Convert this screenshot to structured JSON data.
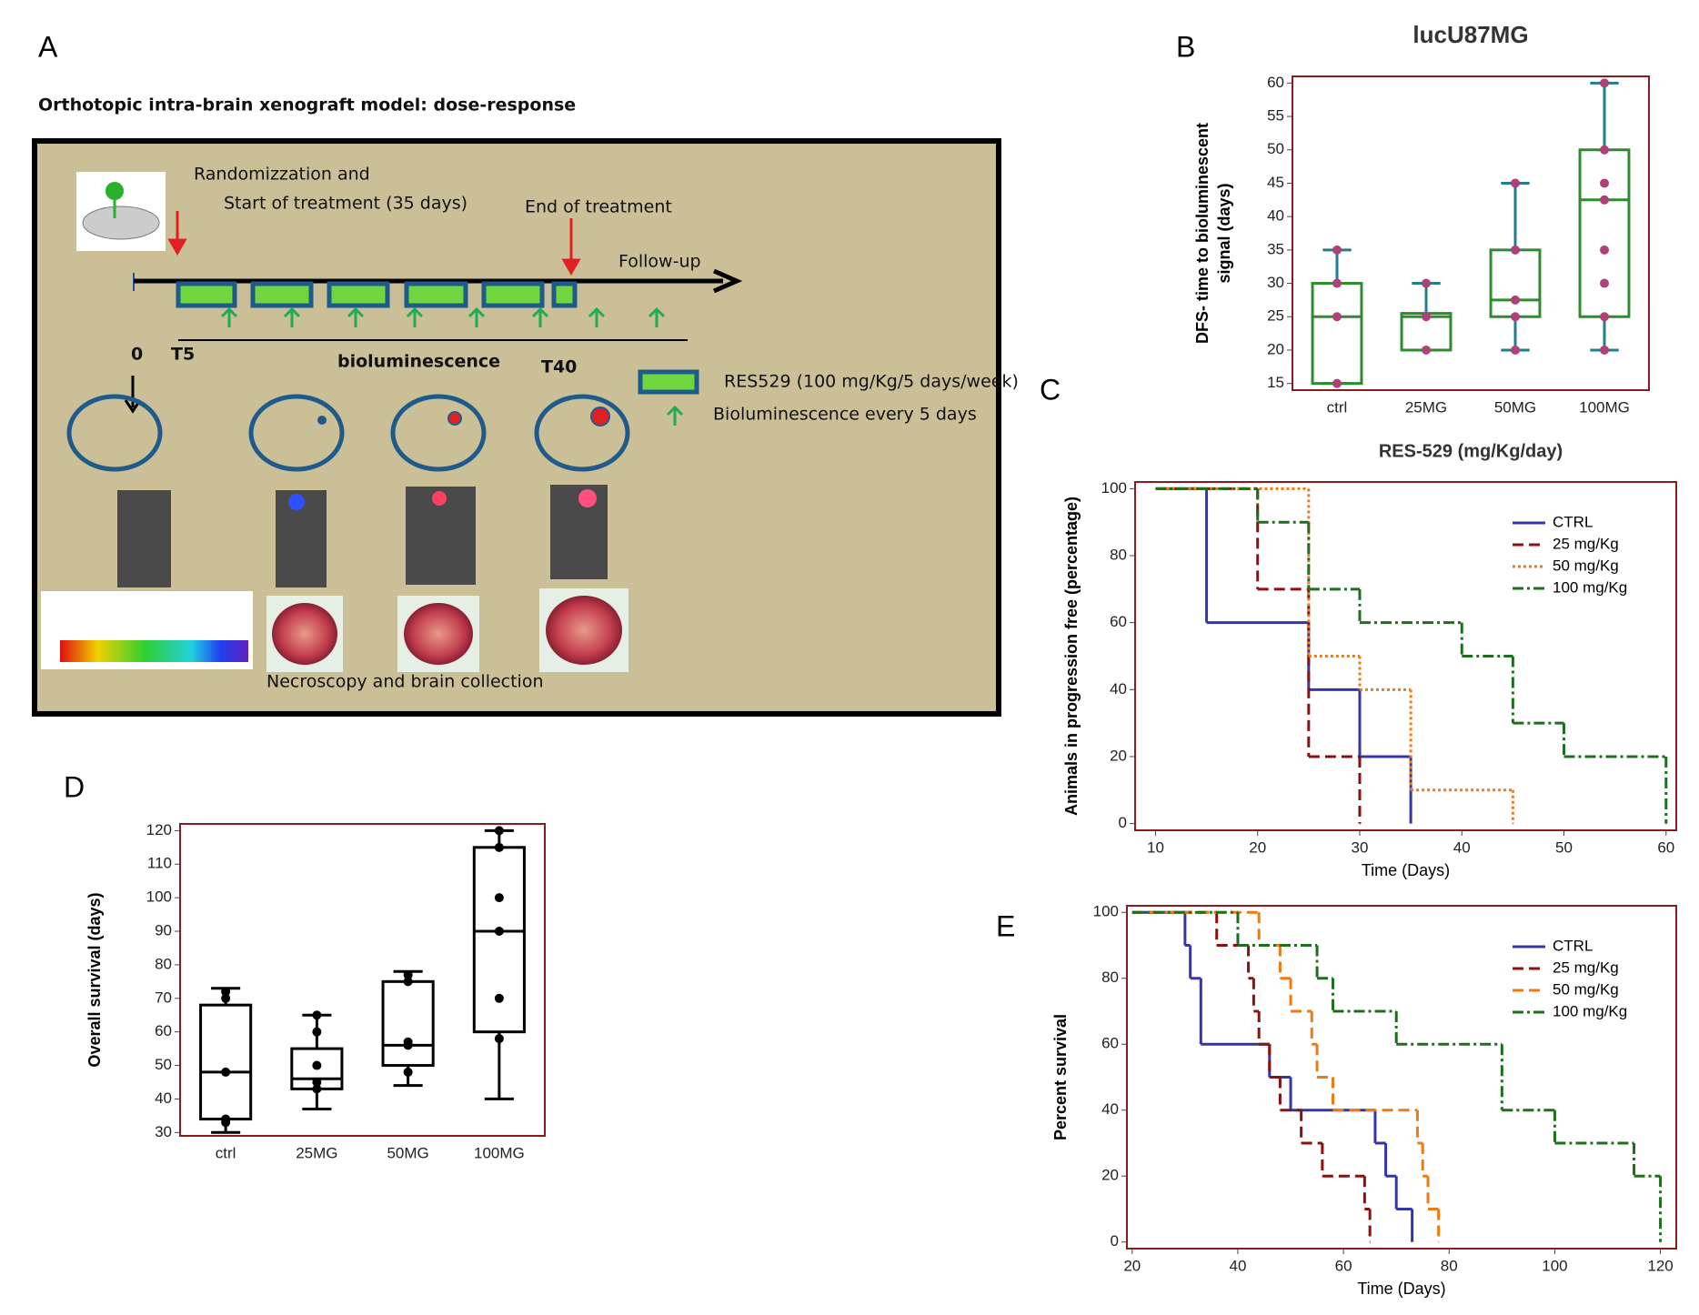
{
  "panel_labels": [
    "A",
    "B",
    "C",
    "D",
    "E"
  ],
  "diagram": {
    "title": "Orthotopic intra-brain xenograft model: dose-response",
    "randomization": [
      "Randomizzation and",
      "Start of treatment (35 days)"
    ],
    "end": "End of treatment",
    "follow_up": "Follow-up",
    "t0": "0",
    "t5": "T5",
    "t40": "T40",
    "imaging": "bioluminescence",
    "legend_dose": "RES529 (100 mg/Kg/5 days/week)",
    "legend_imaging": "Bioluminescence every 5 days",
    "necroscopy": "Necroscopy and brain collection"
  },
  "chart_data": [
    {
      "type": "box",
      "title": "lucU87MG",
      "ylabel": [
        "DFS- time to bioluminescent",
        "signal (days)"
      ],
      "xlabel": "RES-529 (mg/Kg/day)",
      "categories": [
        "ctrl",
        "25MG",
        "50MG",
        "100MG"
      ],
      "min": [
        15,
        20,
        20,
        20
      ],
      "q1": [
        15,
        20,
        25,
        25
      ],
      "median": [
        25,
        25,
        27.5,
        42.5
      ],
      "q3": [
        30,
        25.5,
        35,
        50
      ],
      "max": [
        35,
        30,
        45,
        60
      ],
      "points": [
        [
          15,
          25,
          30,
          35
        ],
        [
          20,
          25,
          30
        ],
        [
          20,
          25,
          27.5,
          35,
          45
        ],
        [
          20,
          25,
          30,
          35,
          42.5,
          45,
          50,
          60
        ]
      ],
      "box_color": "#2e8b2e",
      "whisker_color": "#1f7f8a",
      "point_color": "#b0407a",
      "ylim": [
        14,
        61
      ],
      "yticks": [
        15,
        20,
        25,
        30,
        35,
        40,
        45,
        50,
        55,
        60
      ]
    },
    {
      "type": "step",
      "xlabel": "Time (Days)",
      "ylabel": "Animals in progression free  (percentage)",
      "legend": "upper right",
      "series": [
        {
          "name": "CTRL",
          "color": "#3535a8",
          "dash": "solid",
          "x": [
            10,
            15,
            25,
            30,
            35
          ],
          "values": [
            100,
            60,
            40,
            20,
            0
          ]
        },
        {
          "name": "25 mg/Kg",
          "color": "#8b1010",
          "dash": "dashed",
          "x": [
            10,
            20,
            25,
            30
          ],
          "values": [
            100,
            70,
            20,
            0
          ]
        },
        {
          "name": "50 mg/Kg",
          "color": "#f07a10",
          "dash": "dotted",
          "x": [
            10,
            25,
            30,
            35,
            45
          ],
          "values": [
            100,
            50,
            40,
            10,
            0
          ]
        },
        {
          "name": "100 mg/Kg",
          "color": "#1e6e1e",
          "dash": "dashdot",
          "x": [
            10,
            20,
            25,
            30,
            40,
            45,
            50,
            60
          ],
          "values": [
            100,
            90,
            70,
            60,
            50,
            30,
            20,
            0
          ]
        }
      ],
      "xlim": [
        8,
        61
      ],
      "xticks": [
        10,
        20,
        30,
        40,
        50,
        60
      ],
      "ylim": [
        -2,
        102
      ],
      "yticks": [
        0,
        20,
        40,
        60,
        80,
        100
      ]
    },
    {
      "type": "box",
      "ylabel": [
        "Overall survival (days)"
      ],
      "categories": [
        "ctrl",
        "25MG",
        "50MG",
        "100MG"
      ],
      "min": [
        30,
        37,
        44,
        40
      ],
      "q1": [
        34,
        43,
        50,
        60
      ],
      "median": [
        48,
        46,
        56,
        90
      ],
      "q3": [
        68,
        55,
        75,
        115
      ],
      "max": [
        73,
        65,
        78,
        120
      ],
      "points": [
        [
          33,
          34,
          48,
          70,
          72
        ],
        [
          43,
          45,
          50,
          60,
          65
        ],
        [
          48,
          56,
          57,
          75,
          77
        ],
        [
          58,
          70,
          90,
          100,
          115,
          120
        ]
      ],
      "box_color": "#000000",
      "whisker_color": "#000000",
      "point_color": "#000000",
      "ylim": [
        29,
        122
      ],
      "yticks": [
        30,
        40,
        50,
        60,
        70,
        80,
        90,
        100,
        110,
        120
      ]
    },
    {
      "type": "step",
      "xlabel": "Time (Days)",
      "ylabel": "Percent survival",
      "legend": "upper right",
      "series": [
        {
          "name": "CTRL",
          "color": "#3535a8",
          "dash": "solid",
          "x": [
            20,
            30,
            31,
            33,
            46,
            50,
            66,
            68,
            70,
            73
          ],
          "values": [
            100,
            90,
            80,
            60,
            50,
            40,
            30,
            20,
            10,
            0
          ]
        },
        {
          "name": "25 mg/Kg",
          "color": "#8b1010",
          "dash": "dashed",
          "x": [
            20,
            36,
            42,
            43,
            44,
            46,
            48,
            52,
            56,
            64,
            65
          ],
          "values": [
            100,
            90,
            80,
            70,
            60,
            50,
            40,
            30,
            20,
            10,
            0
          ]
        },
        {
          "name": "50 mg/Kg",
          "color": "#f07a10",
          "dash": "dashed",
          "x": [
            20,
            44,
            48,
            50,
            54,
            55,
            58,
            74,
            75,
            76,
            78
          ],
          "values": [
            100,
            90,
            80,
            70,
            60,
            50,
            40,
            30,
            20,
            10,
            0
          ]
        },
        {
          "name": "100 mg/Kg",
          "color": "#1e6e1e",
          "dash": "dashdot",
          "x": [
            20,
            40,
            55,
            58,
            70,
            90,
            100,
            115,
            120
          ],
          "values": [
            100,
            90,
            80,
            70,
            60,
            40,
            30,
            20,
            0
          ]
        }
      ],
      "xlim": [
        19,
        123
      ],
      "xticks": [
        20,
        40,
        60,
        80,
        100,
        120
      ],
      "ylim": [
        -2,
        102
      ],
      "yticks": [
        0,
        20,
        40,
        60,
        80,
        100
      ]
    }
  ]
}
